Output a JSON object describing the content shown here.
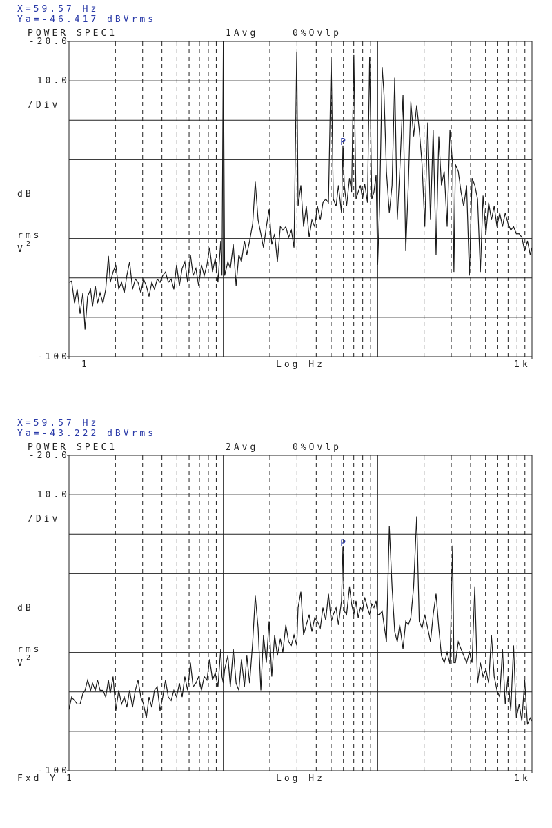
{
  "chart_data": [
    {
      "type": "line",
      "title": "POWER SPEC1",
      "averages": "1Avg",
      "overlap": "0%Ovlp",
      "marker": {
        "x": 59.57,
        "y": -46.417,
        "label": "P",
        "x_readout": "X=59.57 Hz",
        "y_readout": "Ya=-46.417 dBVrms"
      },
      "scale_per_div": {
        "value": 10,
        "label": "10.0"
      },
      "scale_unit": "/Div",
      "y_label": [
        "dB",
        "rms",
        "V"
      ],
      "y_label_sup": "2",
      "x_label": "Log Hz",
      "log_x": true,
      "grid": true,
      "color": "#1a1a1a",
      "xlim": [
        1,
        1000
      ],
      "xticks": [
        1,
        {
          "value": 1000,
          "label": "1k"
        }
      ],
      "ylim": [
        -100,
        -20
      ],
      "yticks": [
        {
          "value": -20,
          "label": "-20.0"
        },
        -100
      ],
      "x": [
        1.0,
        1.04,
        1.086,
        1.13,
        1.18,
        1.23,
        1.27,
        1.32,
        1.38,
        1.42,
        1.48,
        1.53,
        1.59,
        1.66,
        1.73,
        1.8,
        1.85,
        1.93,
        2.01,
        2.1,
        2.19,
        2.28,
        2.37,
        2.47,
        2.58,
        2.69,
        2.8,
        2.92,
        3.04,
        3.17,
        3.3,
        3.44,
        3.58,
        3.73,
        3.89,
        4.05,
        4.22,
        4.4,
        4.59,
        4.78,
        4.98,
        5.19,
        5.41,
        5.63,
        5.87,
        6.12,
        6.37,
        6.64,
        6.92,
        7.21,
        7.52,
        7.83,
        8.16,
        8.51,
        8.86,
        9.23,
        9.62,
        9.8,
        10.0,
        10.2,
        10.7,
        11.1,
        11.6,
        12.1,
        12.6,
        13.1,
        13.7,
        14.2,
        14.8,
        15.5,
        16.1,
        16.8,
        17.5,
        18.2,
        19.0,
        19.8,
        20.6,
        21.5,
        22.4,
        23.4,
        24.3,
        25.4,
        26.5,
        27.6,
        28.7,
        29.9,
        30.5,
        31.8,
        33.1,
        34.5,
        36.0,
        37.5,
        39.1,
        40.7,
        42.5,
        44.2,
        46.1,
        48.0,
        50.0,
        51.6,
        53.8,
        55.7,
        58.3,
        59.57,
        60.8,
        62.9,
        65.7,
        67.8,
        70.1,
        72.4,
        74.8,
        77.3,
        79.8,
        82.4,
        85.9,
        88.7,
        91.6,
        94.6,
        97.7,
        100,
        103,
        107,
        110,
        114,
        119,
        124,
        129,
        134,
        139,
        146,
        152,
        158,
        164,
        171,
        179,
        186,
        194,
        202,
        211,
        220,
        229,
        239,
        249,
        259,
        270,
        282,
        294,
        306,
        312,
        319,
        333,
        347,
        361,
        377,
        393,
        409,
        426,
        444,
        463,
        482,
        503,
        524,
        546,
        569,
        593,
        618,
        644,
        671,
        699,
        729,
        760,
        792,
        826,
        860,
        897,
        935,
        974,
        1000
      ],
      "values": [
        -81.1,
        -80.8,
        -86.4,
        -82.9,
        -89.1,
        -83.8,
        -93.1,
        -84.7,
        -82.9,
        -87.3,
        -82.0,
        -86.4,
        -83.8,
        -86.4,
        -82.9,
        -74.4,
        -81.1,
        -78.5,
        -76.7,
        -82.9,
        -81.1,
        -83.8,
        -79.4,
        -75.9,
        -82.9,
        -80.3,
        -81.1,
        -83.8,
        -80.3,
        -82.0,
        -84.7,
        -81.1,
        -82.9,
        -80.3,
        -81.1,
        -79.4,
        -78.5,
        -81.1,
        -80.3,
        -82.9,
        -76.7,
        -82.0,
        -77.6,
        -75.9,
        -81.1,
        -74.1,
        -79.4,
        -77.6,
        -82.0,
        -76.7,
        -79.4,
        -76.7,
        -72.3,
        -78.5,
        -75.0,
        -81.1,
        -70.6,
        -79.4,
        -20,
        -79.4,
        -75.9,
        -77.6,
        -71.5,
        -82.0,
        -74.1,
        -75.9,
        -70.6,
        -74.1,
        -70.6,
        -66.2,
        -55.6,
        -65.3,
        -68.8,
        -72.3,
        -67.0,
        -62.6,
        -71.5,
        -68.8,
        -75.9,
        -67.0,
        -67.9,
        -67.0,
        -69.7,
        -67.9,
        -72.3,
        -22.6,
        -61.8,
        -56.5,
        -67.0,
        -61.8,
        -69.7,
        -65.3,
        -67.0,
        -61.8,
        -65.3,
        -60.9,
        -60.0,
        -60.9,
        -23.9,
        -60.0,
        -61.8,
        -56.5,
        -63.5,
        -46.417,
        -56.5,
        -61.8,
        -54.7,
        -58.2,
        -23.3,
        -60.0,
        -58.2,
        -56.5,
        -60.0,
        -56.1,
        -60.9,
        -23.9,
        -60.0,
        -58.2,
        -53.8,
        -76.7,
        -61.8,
        -26.5,
        -33.6,
        -53.0,
        -63.5,
        -56.5,
        -29.2,
        -65.3,
        -53.0,
        -33.6,
        -73.2,
        -56.5,
        -35.3,
        -44.1,
        -36.2,
        -42.4,
        -51.2,
        -67.0,
        -40.6,
        -65.3,
        -42.4,
        -74.1,
        -44.1,
        -56.5,
        -53.0,
        -67.0,
        -42.4,
        -51.2,
        -78.5,
        -51.2,
        -53.0,
        -58.2,
        -61.8,
        -56.5,
        -79.4,
        -54.7,
        -56.5,
        -60.0,
        -78.5,
        -59.1,
        -68.8,
        -60.9,
        -65.3,
        -61.8,
        -67.0,
        -63.5,
        -67.0,
        -63.5,
        -66.2,
        -67.9,
        -67.0,
        -68.8,
        -68.8,
        -69.7,
        -73.2,
        -70.6,
        -74.1,
        -72.3
      ]
    },
    {
      "type": "line",
      "title": "POWER SPEC1",
      "averages": "2Avg",
      "overlap": "0%Ovlp",
      "footer": "Fxd Y 1",
      "marker": {
        "x": 59.57,
        "y": -43.222,
        "label": "P",
        "x_readout": "X=59.57 Hz",
        "y_readout": "Ya=-43.222 dBVrms"
      },
      "scale_per_div": {
        "value": 10,
        "label": "10.0"
      },
      "scale_unit": "/Div",
      "y_label": [
        "dB",
        "rms",
        "V"
      ],
      "y_label_sup": "2",
      "x_label": "Log Hz",
      "log_x": true,
      "grid": true,
      "color": "#1a1a1a",
      "xlim": [
        1,
        1000
      ],
      "xticks": [
        {
          "value": 1000,
          "label": "1k"
        }
      ],
      "ylim": [
        -100,
        -20
      ],
      "yticks": [
        {
          "value": -20,
          "label": "-20.0"
        },
        -100
      ],
      "x": [
        1.0,
        1.04,
        1.086,
        1.13,
        1.18,
        1.23,
        1.27,
        1.32,
        1.38,
        1.42,
        1.48,
        1.53,
        1.59,
        1.66,
        1.73,
        1.8,
        1.85,
        1.93,
        2.01,
        2.1,
        2.19,
        2.28,
        2.37,
        2.47,
        2.58,
        2.69,
        2.8,
        2.92,
        3.04,
        3.17,
        3.3,
        3.44,
        3.58,
        3.73,
        3.89,
        4.05,
        4.22,
        4.4,
        4.59,
        4.78,
        4.98,
        5.19,
        5.41,
        5.63,
        5.87,
        6.12,
        6.37,
        6.64,
        6.92,
        7.21,
        7.52,
        7.83,
        8.16,
        8.51,
        8.86,
        9.23,
        9.62,
        9.8,
        10.0,
        10.2,
        10.7,
        11.1,
        11.6,
        12.1,
        12.6,
        13.1,
        13.7,
        14.2,
        14.8,
        15.5,
        16.1,
        16.8,
        17.5,
        18.2,
        19.0,
        19.8,
        20.6,
        21.5,
        22.4,
        23.4,
        24.3,
        25.4,
        26.5,
        27.6,
        28.7,
        29.9,
        30.5,
        31.8,
        33.1,
        34.5,
        36.0,
        37.5,
        39.1,
        40.7,
        42.5,
        44.2,
        46.1,
        48.0,
        50.0,
        51.6,
        53.8,
        55.7,
        58.3,
        59.57,
        60.8,
        62.9,
        65.7,
        67.8,
        70.1,
        72.4,
        74.8,
        77.3,
        79.8,
        82.4,
        85.9,
        88.7,
        91.6,
        94.6,
        97.7,
        100,
        103,
        107,
        110,
        114,
        119,
        124,
        129,
        134,
        139,
        146,
        152,
        158,
        164,
        171,
        179,
        186,
        194,
        202,
        211,
        220,
        229,
        239,
        249,
        259,
        270,
        282,
        294,
        306,
        312,
        319,
        333,
        347,
        361,
        377,
        393,
        409,
        426,
        444,
        463,
        482,
        503,
        524,
        546,
        569,
        593,
        618,
        644,
        671,
        699,
        729,
        760,
        792,
        826,
        860,
        897,
        935,
        974,
        1000
      ],
      "values": [
        -84.5,
        -81.3,
        -82.2,
        -83.1,
        -83.1,
        -80.4,
        -79.6,
        -77.0,
        -79.6,
        -77.8,
        -79.6,
        -77.0,
        -79.6,
        -79.6,
        -81.3,
        -77.0,
        -80.4,
        -76.1,
        -84.8,
        -79.6,
        -83.1,
        -81.3,
        -83.9,
        -79.6,
        -83.9,
        -79.6,
        -77.0,
        -81.3,
        -83.1,
        -86.6,
        -81.3,
        -83.9,
        -79.6,
        -78.7,
        -84.8,
        -81.3,
        -77.0,
        -81.3,
        -82.2,
        -79.6,
        -81.3,
        -77.8,
        -81.3,
        -76.1,
        -79.6,
        -72.6,
        -78.7,
        -77.8,
        -76.1,
        -79.6,
        -76.1,
        -77.0,
        -71.7,
        -77.0,
        -75.2,
        -78.7,
        -69.1,
        -76.1,
        -77.8,
        -74.3,
        -70.8,
        -78.7,
        -69.1,
        -77.8,
        -79.6,
        -71.7,
        -78.7,
        -70.8,
        -77.8,
        -67.3,
        -55.6,
        -63.8,
        -79.6,
        -65.6,
        -72.6,
        -62.1,
        -76.1,
        -65.6,
        -70.8,
        -66.5,
        -70.0,
        -63.0,
        -67.3,
        -68.2,
        -65.6,
        -68.2,
        -58.6,
        -54.6,
        -65.6,
        -63.0,
        -60.4,
        -64.7,
        -61.2,
        -62.1,
        -63.8,
        -58.6,
        -61.8,
        -55.1,
        -62.1,
        -60.4,
        -58.6,
        -63.0,
        -56.9,
        -43.222,
        -59.5,
        -60.4,
        -53.4,
        -57.7,
        -60.4,
        -56.9,
        -61.2,
        -58.6,
        -59.5,
        -56.0,
        -58.6,
        -60.4,
        -57.7,
        -58.6,
        -56.9,
        -60.4,
        -60.4,
        -59.5,
        -63.0,
        -67.3,
        -38.0,
        -53.4,
        -64.7,
        -67.3,
        -63.0,
        -69.1,
        -62.1,
        -63.0,
        -61.2,
        -53.4,
        -35.5,
        -62.1,
        -63.8,
        -60.4,
        -63.8,
        -67.3,
        -60.4,
        -55.1,
        -63.8,
        -70.8,
        -72.6,
        -70.0,
        -72.9,
        -42.9,
        -72.6,
        -72.6,
        -67.3,
        -69.1,
        -70.8,
        -72.6,
        -70.0,
        -72.6,
        -53.4,
        -77.8,
        -72.6,
        -76.1,
        -74.3,
        -77.8,
        -65.6,
        -76.1,
        -79.6,
        -81.3,
        -69.1,
        -83.1,
        -76.1,
        -84.8,
        -68.2,
        -86.6,
        -83.1,
        -87.4,
        -77.0,
        -88.3,
        -86.6,
        -87.4
      ]
    }
  ]
}
